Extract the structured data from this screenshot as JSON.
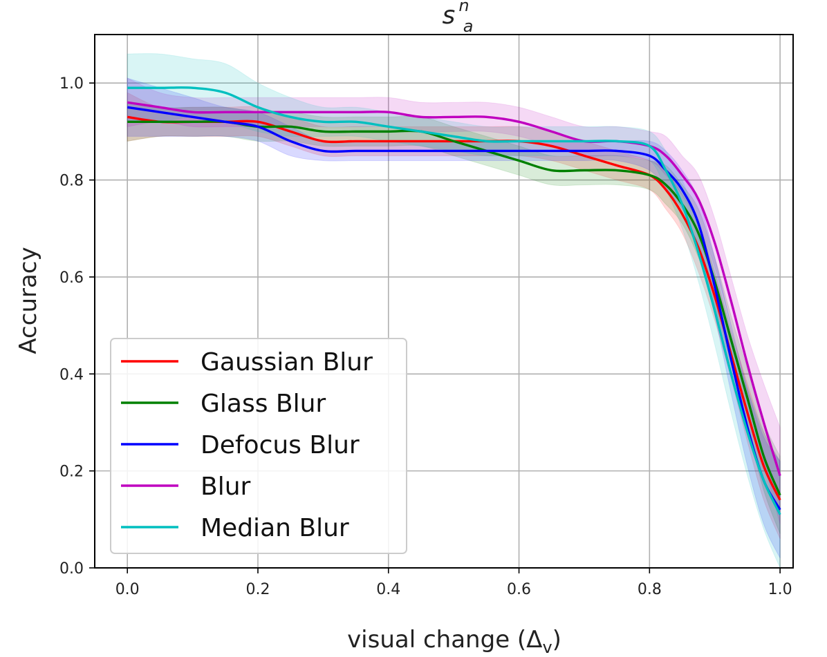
{
  "chart_data": {
    "type": "line",
    "title": "s_a^n",
    "title_parts": {
      "base": "s",
      "sup": "n",
      "sub": "a"
    },
    "xlabel": "visual change (Δ_v)",
    "xlabel_parts": {
      "main": "visual change (Δ",
      "sub": "v",
      "close": ")"
    },
    "ylabel": "Accuracy",
    "xlim": [
      -0.05,
      1.02
    ],
    "ylim": [
      0.0,
      1.1
    ],
    "xticks": [
      0.0,
      0.2,
      0.4,
      0.6,
      0.8,
      1.0
    ],
    "xtick_labels": [
      "0.0",
      "0.2",
      "0.4",
      "0.6",
      "0.8",
      "1.0"
    ],
    "yticks": [
      0.0,
      0.2,
      0.4,
      0.6,
      0.8,
      1.0
    ],
    "ytick_labels": [
      "0.0",
      "0.2",
      "0.4",
      "0.6",
      "0.8",
      "1.0"
    ],
    "grid": true,
    "legend_position": "lower-left",
    "series": [
      {
        "name": "Gaussian Blur",
        "color": "#ff0000",
        "x": [
          0.0,
          0.05,
          0.1,
          0.15,
          0.2,
          0.25,
          0.3,
          0.35,
          0.4,
          0.45,
          0.5,
          0.55,
          0.6,
          0.65,
          0.7,
          0.75,
          0.8,
          0.825,
          0.85,
          0.875,
          0.9,
          0.925,
          0.95,
          0.975,
          1.0
        ],
        "y": [
          0.93,
          0.92,
          0.92,
          0.92,
          0.92,
          0.9,
          0.88,
          0.88,
          0.88,
          0.88,
          0.88,
          0.88,
          0.88,
          0.87,
          0.85,
          0.83,
          0.81,
          0.78,
          0.73,
          0.66,
          0.56,
          0.44,
          0.32,
          0.21,
          0.14
        ],
        "band": [
          0.05,
          0.03,
          0.03,
          0.03,
          0.03,
          0.03,
          0.03,
          0.03,
          0.03,
          0.03,
          0.03,
          0.03,
          0.03,
          0.03,
          0.03,
          0.03,
          0.03,
          0.04,
          0.04,
          0.05,
          0.05,
          0.05,
          0.06,
          0.07,
          0.08
        ]
      },
      {
        "name": "Glass Blur",
        "color": "#008000",
        "x": [
          0.0,
          0.05,
          0.1,
          0.15,
          0.2,
          0.25,
          0.3,
          0.35,
          0.4,
          0.45,
          0.5,
          0.55,
          0.6,
          0.65,
          0.7,
          0.75,
          0.8,
          0.825,
          0.85,
          0.875,
          0.9,
          0.925,
          0.95,
          0.975,
          1.0
        ],
        "y": [
          0.92,
          0.92,
          0.92,
          0.92,
          0.91,
          0.91,
          0.9,
          0.9,
          0.9,
          0.9,
          0.88,
          0.86,
          0.84,
          0.82,
          0.82,
          0.82,
          0.81,
          0.79,
          0.75,
          0.69,
          0.59,
          0.47,
          0.35,
          0.23,
          0.15
        ],
        "band": [
          0.04,
          0.03,
          0.03,
          0.03,
          0.03,
          0.03,
          0.03,
          0.03,
          0.03,
          0.03,
          0.03,
          0.03,
          0.03,
          0.03,
          0.03,
          0.03,
          0.03,
          0.04,
          0.04,
          0.05,
          0.05,
          0.05,
          0.06,
          0.07,
          0.08
        ]
      },
      {
        "name": "Defocus Blur",
        "color": "#0000ff",
        "x": [
          0.0,
          0.05,
          0.1,
          0.15,
          0.2,
          0.25,
          0.3,
          0.35,
          0.4,
          0.45,
          0.5,
          0.55,
          0.6,
          0.65,
          0.7,
          0.75,
          0.8,
          0.825,
          0.85,
          0.875,
          0.9,
          0.925,
          0.95,
          0.975,
          1.0
        ],
        "y": [
          0.95,
          0.94,
          0.93,
          0.92,
          0.91,
          0.88,
          0.86,
          0.86,
          0.86,
          0.86,
          0.86,
          0.86,
          0.86,
          0.86,
          0.86,
          0.86,
          0.85,
          0.82,
          0.78,
          0.71,
          0.58,
          0.43,
          0.29,
          0.18,
          0.12
        ],
        "band": [
          0.06,
          0.05,
          0.04,
          0.03,
          0.03,
          0.03,
          0.02,
          0.02,
          0.02,
          0.02,
          0.02,
          0.02,
          0.02,
          0.02,
          0.02,
          0.02,
          0.03,
          0.04,
          0.04,
          0.05,
          0.06,
          0.07,
          0.08,
          0.09,
          0.1
        ]
      },
      {
        "name": "Blur",
        "color": "#bf00bf",
        "x": [
          0.0,
          0.05,
          0.1,
          0.15,
          0.2,
          0.25,
          0.3,
          0.35,
          0.4,
          0.45,
          0.5,
          0.55,
          0.6,
          0.65,
          0.7,
          0.75,
          0.8,
          0.825,
          0.85,
          0.875,
          0.9,
          0.925,
          0.95,
          0.975,
          1.0
        ],
        "y": [
          0.96,
          0.95,
          0.94,
          0.94,
          0.94,
          0.94,
          0.94,
          0.94,
          0.94,
          0.93,
          0.93,
          0.93,
          0.92,
          0.9,
          0.88,
          0.88,
          0.87,
          0.85,
          0.81,
          0.76,
          0.67,
          0.55,
          0.42,
          0.3,
          0.19
        ],
        "band": [
          0.05,
          0.03,
          0.03,
          0.03,
          0.03,
          0.03,
          0.03,
          0.03,
          0.03,
          0.03,
          0.03,
          0.03,
          0.03,
          0.03,
          0.03,
          0.03,
          0.03,
          0.04,
          0.04,
          0.05,
          0.05,
          0.05,
          0.06,
          0.08,
          0.1
        ]
      },
      {
        "name": "Median Blur",
        "color": "#00bfbf",
        "x": [
          0.0,
          0.05,
          0.1,
          0.15,
          0.2,
          0.25,
          0.3,
          0.35,
          0.4,
          0.45,
          0.5,
          0.55,
          0.6,
          0.65,
          0.7,
          0.75,
          0.8,
          0.825,
          0.85,
          0.875,
          0.9,
          0.925,
          0.95,
          0.975,
          1.0
        ],
        "y": [
          0.99,
          0.99,
          0.99,
          0.98,
          0.95,
          0.93,
          0.92,
          0.92,
          0.91,
          0.9,
          0.89,
          0.88,
          0.88,
          0.88,
          0.88,
          0.88,
          0.87,
          0.82,
          0.75,
          0.65,
          0.53,
          0.4,
          0.28,
          0.18,
          0.11
        ],
        "band": [
          0.07,
          0.07,
          0.06,
          0.06,
          0.05,
          0.04,
          0.03,
          0.03,
          0.03,
          0.03,
          0.03,
          0.03,
          0.03,
          0.03,
          0.03,
          0.03,
          0.03,
          0.04,
          0.05,
          0.06,
          0.07,
          0.08,
          0.09,
          0.1,
          0.11
        ]
      }
    ]
  }
}
